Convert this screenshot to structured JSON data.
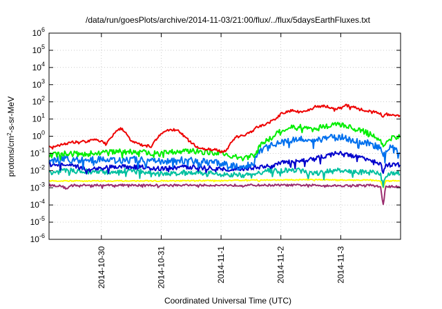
{
  "chart_data": {
    "type": "line",
    "title": "/data/run/goesPlots/archive/2014-11-03/21:00/flux/../flux/5daysEarthFluxes.txt",
    "xlabel": "Coordinated Universal Time (UTC)",
    "ylabel_prefix": "protons/cm",
    "ylabel_sup": "2",
    "ylabel_suffix": "-s-sr-MeV",
    "x_unit": "hours since 2014-10-29 00:00 UTC",
    "xlim": [
      3,
      144
    ],
    "ylim_exponent": [
      -6,
      6
    ],
    "y_scale": "log",
    "grid": true,
    "legend": "none",
    "x_ticks": [
      {
        "pos": 24,
        "label": "2014-10-30"
      },
      {
        "pos": 48,
        "label": "2014-10-31"
      },
      {
        "pos": 72,
        "label": "2014-11-1"
      },
      {
        "pos": 96,
        "label": "2014-11-2"
      },
      {
        "pos": 120,
        "label": "2014-11-3"
      }
    ],
    "y_ticks": [
      {
        "base": "10",
        "exp": "6"
      },
      {
        "base": "10",
        "exp": "5"
      },
      {
        "base": "10",
        "exp": "4"
      },
      {
        "base": "10",
        "exp": "3"
      },
      {
        "base": "10",
        "exp": "2"
      },
      {
        "base": "10",
        "exp": "1"
      },
      {
        "base": "10",
        "exp": "0"
      },
      {
        "base": "10",
        "exp": "-1"
      },
      {
        "base": "10",
        "exp": "-2"
      },
      {
        "base": "10",
        "exp": "-3"
      },
      {
        "base": "10",
        "exp": "-4"
      },
      {
        "base": "10",
        "exp": "-5"
      },
      {
        "base": "10",
        "exp": "-6"
      }
    ],
    "series": [
      {
        "color": "#9b2d6e",
        "noise": 0.06,
        "spike": 0.15,
        "points": [
          [
            3,
            -2.85
          ],
          [
            8,
            -2.9
          ],
          [
            10,
            -3.05
          ],
          [
            12,
            -2.85
          ],
          [
            24,
            -2.85
          ],
          [
            36,
            -2.85
          ],
          [
            48,
            -2.85
          ],
          [
            60,
            -2.85
          ],
          [
            72,
            -2.85
          ],
          [
            84,
            -2.85
          ],
          [
            96,
            -2.85
          ],
          [
            108,
            -2.85
          ],
          [
            120,
            -2.88
          ],
          [
            132,
            -2.85
          ],
          [
            136,
            -2.95
          ],
          [
            137,
            -4.05
          ],
          [
            138,
            -2.95
          ],
          [
            144,
            -2.9
          ]
        ]
      },
      {
        "color": "#ffff00",
        "noise": 0.03,
        "spike": 0.05,
        "points": [
          [
            3,
            -2.6
          ],
          [
            24,
            -2.6
          ],
          [
            48,
            -2.6
          ],
          [
            72,
            -2.58
          ],
          [
            84,
            -2.55
          ],
          [
            96,
            -2.55
          ],
          [
            108,
            -2.52
          ],
          [
            120,
            -2.55
          ],
          [
            132,
            -2.55
          ],
          [
            136,
            -2.6
          ],
          [
            137,
            -3.0
          ],
          [
            138,
            -2.6
          ],
          [
            144,
            -2.6
          ]
        ]
      },
      {
        "color": "#00c0a0",
        "noise": 0.15,
        "spike": 0.35,
        "points": [
          [
            3,
            -2.1
          ],
          [
            10,
            -2.0
          ],
          [
            24,
            -2.1
          ],
          [
            36,
            -2.0
          ],
          [
            48,
            -2.2
          ],
          [
            60,
            -2.1
          ],
          [
            72,
            -2.2
          ],
          [
            84,
            -2.3
          ],
          [
            86,
            -2.2
          ],
          [
            90,
            -2.0
          ],
          [
            96,
            -2.0
          ],
          [
            104,
            -2.0
          ],
          [
            108,
            -2.2
          ],
          [
            114,
            -2.05
          ],
          [
            120,
            -2.0
          ],
          [
            126,
            -2.1
          ],
          [
            132,
            -2.1
          ],
          [
            136,
            -2.2
          ],
          [
            137,
            -2.9
          ],
          [
            138,
            -2.3
          ],
          [
            144,
            -2.1
          ]
        ]
      },
      {
        "color": "#0000cc",
        "noise": 0.13,
        "spike": 0.35,
        "points": [
          [
            3,
            -1.6
          ],
          [
            10,
            -1.7
          ],
          [
            20,
            -1.9
          ],
          [
            30,
            -1.75
          ],
          [
            40,
            -1.8
          ],
          [
            48,
            -1.9
          ],
          [
            56,
            -1.8
          ],
          [
            64,
            -1.8
          ],
          [
            72,
            -1.9
          ],
          [
            80,
            -1.9
          ],
          [
            86,
            -1.8
          ],
          [
            92,
            -1.75
          ],
          [
            96,
            -1.55
          ],
          [
            104,
            -1.45
          ],
          [
            112,
            -1.2
          ],
          [
            120,
            -0.95
          ],
          [
            126,
            -1.2
          ],
          [
            132,
            -1.35
          ],
          [
            136,
            -1.6
          ],
          [
            137,
            -2.2
          ],
          [
            138,
            -1.7
          ],
          [
            144,
            -1.65
          ]
        ]
      },
      {
        "color": "#0070ee",
        "noise": 0.2,
        "spike": 0.4,
        "points": [
          [
            3,
            -1.5
          ],
          [
            8,
            -1.3
          ],
          [
            16,
            -1.4
          ],
          [
            24,
            -1.35
          ],
          [
            32,
            -1.4
          ],
          [
            40,
            -1.35
          ],
          [
            48,
            -1.5
          ],
          [
            56,
            -1.4
          ],
          [
            64,
            -1.45
          ],
          [
            72,
            -1.6
          ],
          [
            80,
            -1.8
          ],
          [
            85,
            -1.65
          ],
          [
            87,
            -0.85
          ],
          [
            90,
            -0.65
          ],
          [
            96,
            -0.35
          ],
          [
            100,
            -0.2
          ],
          [
            104,
            -0.1
          ],
          [
            108,
            -0.35
          ],
          [
            112,
            -0.15
          ],
          [
            120,
            -0.05
          ],
          [
            126,
            -0.25
          ],
          [
            132,
            -0.45
          ],
          [
            136,
            -0.7
          ],
          [
            137,
            -1.2
          ],
          [
            140,
            -0.6
          ],
          [
            144,
            -0.85
          ]
        ]
      },
      {
        "color": "#00ee00",
        "noise": 0.16,
        "spike": 0.3,
        "points": [
          [
            3,
            -1.1
          ],
          [
            10,
            -1.0
          ],
          [
            16,
            -1.05
          ],
          [
            24,
            -0.95
          ],
          [
            30,
            -0.9
          ],
          [
            36,
            -0.9
          ],
          [
            42,
            -0.95
          ],
          [
            48,
            -1.0
          ],
          [
            56,
            -0.85
          ],
          [
            64,
            -0.9
          ],
          [
            72,
            -1.0
          ],
          [
            80,
            -1.3
          ],
          [
            86,
            -1.1
          ],
          [
            88,
            -0.4
          ],
          [
            92,
            -0.1
          ],
          [
            96,
            0.3
          ],
          [
            100,
            0.5
          ],
          [
            104,
            0.55
          ],
          [
            108,
            0.4
          ],
          [
            112,
            0.55
          ],
          [
            116,
            0.6
          ],
          [
            120,
            0.7
          ],
          [
            124,
            0.5
          ],
          [
            128,
            0.35
          ],
          [
            132,
            0.1
          ],
          [
            136,
            -0.2
          ],
          [
            137,
            -0.5
          ],
          [
            140,
            -0.1
          ],
          [
            144,
            -0.05
          ]
        ]
      },
      {
        "color": "#ee0000",
        "noise": 0.07,
        "spike": 0.12,
        "points": [
          [
            3,
            -0.6
          ],
          [
            8,
            -0.5
          ],
          [
            12,
            -0.35
          ],
          [
            18,
            -0.3
          ],
          [
            22,
            -0.2
          ],
          [
            26,
            -0.4
          ],
          [
            28,
            -0.1
          ],
          [
            30,
            0.35
          ],
          [
            32,
            0.45
          ],
          [
            34,
            0.2
          ],
          [
            36,
            -0.3
          ],
          [
            40,
            -0.5
          ],
          [
            44,
            -0.6
          ],
          [
            46,
            -0.2
          ],
          [
            48,
            0.2
          ],
          [
            52,
            0.4
          ],
          [
            55,
            0.3
          ],
          [
            58,
            -0.1
          ],
          [
            62,
            -0.6
          ],
          [
            66,
            -0.75
          ],
          [
            70,
            -0.8
          ],
          [
            72,
            -0.9
          ],
          [
            74,
            -0.85
          ],
          [
            76,
            -0.4
          ],
          [
            78,
            0.0
          ],
          [
            82,
            0.1
          ],
          [
            86,
            0.5
          ],
          [
            90,
            0.7
          ],
          [
            94,
            1.0
          ],
          [
            96,
            1.3
          ],
          [
            100,
            1.5
          ],
          [
            104,
            1.4
          ],
          [
            108,
            1.55
          ],
          [
            110,
            1.75
          ],
          [
            114,
            1.75
          ],
          [
            118,
            1.6
          ],
          [
            122,
            1.8
          ],
          [
            126,
            1.65
          ],
          [
            130,
            1.5
          ],
          [
            134,
            1.4
          ],
          [
            136,
            1.3
          ],
          [
            137,
            1.05
          ],
          [
            138,
            1.3
          ],
          [
            144,
            1.2
          ]
        ]
      }
    ]
  }
}
